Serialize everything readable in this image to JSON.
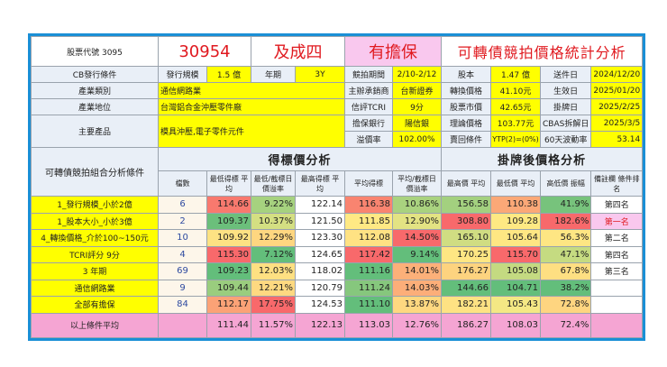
{
  "header": {
    "stock_code_label": "股票代號 3095",
    "cb_code": "30954",
    "cb_name": "及成四",
    "guarantee": "有擔保",
    "title": "可轉債競拍價格統計分析"
  },
  "info": {
    "cb_conditions": "CB發行條件",
    "issue_size_label": "發行規模",
    "issue_size": "1.5 億",
    "term_label": "年期",
    "term": "3Y",
    "industry_label": "產業類別",
    "industry": "通信網路業",
    "position_label": "產業地位",
    "position": "台灣鋁合金沖壓零件廠",
    "products_label": "主要產品",
    "products": "模具沖壓,電子零件元件",
    "auction_period_label": "競拍期間",
    "auction_period": "2/10-2/12",
    "underwriter_label": "主辦承銷商",
    "underwriter": "台新證券",
    "tcri_label": "信評TCRI",
    "tcri": "9分",
    "guarantor_label": "擔保銀行",
    "guarantor": "陽信銀",
    "premium_label": "溢價率",
    "premium": "102.00%",
    "capital_label": "股本",
    "capital": "1.47 億",
    "conv_price_label": "轉換價格",
    "conv_price": "41.10元",
    "market_price_label": "股票市價",
    "market_price": "42.65元",
    "theory_price_label": "理論價格",
    "theory_price": "103.77元",
    "putback_label": "賣回條件",
    "putback": "YTP(2)=(0%)",
    "submit_date_label": "送件日",
    "submit_date": "2024/12/20",
    "effective_date_label": "生效日",
    "effective_date": "2025/01/20",
    "listing_date_label": "掛牌日",
    "listing_date": "2025/2/25",
    "cbas_date_label": "CBAS拆解日",
    "cbas_date": "2025/3/5",
    "vol60_label": "60天波動率",
    "vol60": "53.14"
  },
  "analysis": {
    "condition_header": "可轉債競拍組合分析條件",
    "bid_section": "得標價分析",
    "post_section": "掛牌後價格分析",
    "columns": [
      "檔數",
      "最低得標 平均",
      "最低/截標日 價溢率",
      "最高得標 平均",
      "平均得標",
      "平均/截標日 價溢率",
      "最高價 平均",
      "最低價 平均",
      "高低價 振幅",
      "備註欄 條件排名"
    ],
    "rows": [
      {
        "label": "1_發行規模_小於2億",
        "count": "6",
        "cells": [
          [
            "114.66",
            "#f8796e"
          ],
          [
            "9.22%",
            "#a6d27f"
          ],
          [
            "122.14",
            "#ffffff"
          ],
          [
            "116.38",
            "#f98470"
          ],
          [
            "10.86%",
            "#a9d27f"
          ],
          [
            "156.58",
            "#a3d07f"
          ],
          [
            "110.38",
            "#fba877"
          ],
          [
            "41.9%",
            "#77c37c"
          ]
        ],
        "rank": "第四名",
        "rank_highlight": false
      },
      {
        "label": "1_股本大小_小於3億",
        "count": "2",
        "cells": [
          [
            "109.37",
            "#6bbf7b"
          ],
          [
            "10.37%",
            "#d4df82"
          ],
          [
            "121.50",
            "#ffffff"
          ],
          [
            "111.85",
            "#ffe984"
          ],
          [
            "12.90%",
            "#e3e383"
          ],
          [
            "308.80",
            "#f8696b"
          ],
          [
            "109.28",
            "#fee983"
          ],
          [
            "182.6%",
            "#f8696b"
          ]
        ],
        "rank": "第一名",
        "rank_highlight": true
      },
      {
        "label": "4_轉換價格_介於100~150元",
        "count": "10",
        "cells": [
          [
            "109.92",
            "#fde283"
          ],
          [
            "12.29%",
            "#fed680"
          ],
          [
            "123.30",
            "#ffffff"
          ],
          [
            "112.08",
            "#ffe283"
          ],
          [
            "14.50%",
            "#f8696b"
          ],
          [
            "165.10",
            "#d0dd82"
          ],
          [
            "105.64",
            "#fee783"
          ],
          [
            "56.3%",
            "#fee683"
          ]
        ],
        "rank": "第二名",
        "rank_highlight": false
      },
      {
        "label": "TCRI評分 9分",
        "count": "4",
        "cells": [
          [
            "115.30",
            "#f8696b"
          ],
          [
            "7.12%",
            "#63be7b"
          ],
          [
            "124.65",
            "#ffffff"
          ],
          [
            "117.42",
            "#f8696b"
          ],
          [
            "9.14%",
            "#63be7b"
          ],
          [
            "170.25",
            "#fee683"
          ],
          [
            "115.70",
            "#f8696b"
          ],
          [
            "47.1%",
            "#c5db81"
          ]
        ],
        "rank": "第四名",
        "rank_highlight": false
      },
      {
        "label": "3 年期",
        "count": "69",
        "cells": [
          [
            "109.23",
            "#63be7b"
          ],
          [
            "12.03%",
            "#fee082"
          ],
          [
            "118.02",
            "#ffffff"
          ],
          [
            "111.16",
            "#63be7b"
          ],
          [
            "14.01%",
            "#fcb079"
          ],
          [
            "176.27",
            "#fdd37f"
          ],
          [
            "105.08",
            "#c4da81"
          ],
          [
            "67.8%",
            "#fedf82"
          ]
        ],
        "rank": "第三名",
        "rank_highlight": false
      },
      {
        "label": "通信網路業",
        "count": "9",
        "cells": [
          [
            "109.44",
            "#9acd7e"
          ],
          [
            "12.21%",
            "#fed981"
          ],
          [
            "120.79",
            "#ffffff"
          ],
          [
            "111.24",
            "#86c77d"
          ],
          [
            "14.03%",
            "#fcae79"
          ],
          [
            "144.66",
            "#63be7b"
          ],
          [
            "104.71",
            "#63be7b"
          ],
          [
            "38.2%",
            "#63be7b"
          ]
        ],
        "rank": "",
        "rank_highlight": false
      },
      {
        "label": "全部有擔保",
        "count": "84",
        "cells": [
          [
            "112.17",
            "#fba276"
          ],
          [
            "17.75%",
            "#f8696b"
          ],
          [
            "124.53",
            "#ffffff"
          ],
          [
            "111.10",
            "#63be7b"
          ],
          [
            "13.87%",
            "#fed880"
          ],
          [
            "182.21",
            "#fee283"
          ],
          [
            "105.43",
            "#f4e884"
          ],
          [
            "72.8%",
            "#fed580"
          ]
        ],
        "rank": "",
        "rank_highlight": false
      }
    ],
    "average": {
      "label": "以上條件平均",
      "values": [
        "111.44",
        "11.57%",
        "122.13",
        "113.03",
        "12.76%",
        "186.27",
        "108.03",
        "72.4%"
      ]
    }
  },
  "colors": {
    "frame": "#1a8fd6",
    "label_yellow": "#ffff00",
    "average_pink": "#f5a5d3",
    "highlight_red": "#e0191f"
  }
}
